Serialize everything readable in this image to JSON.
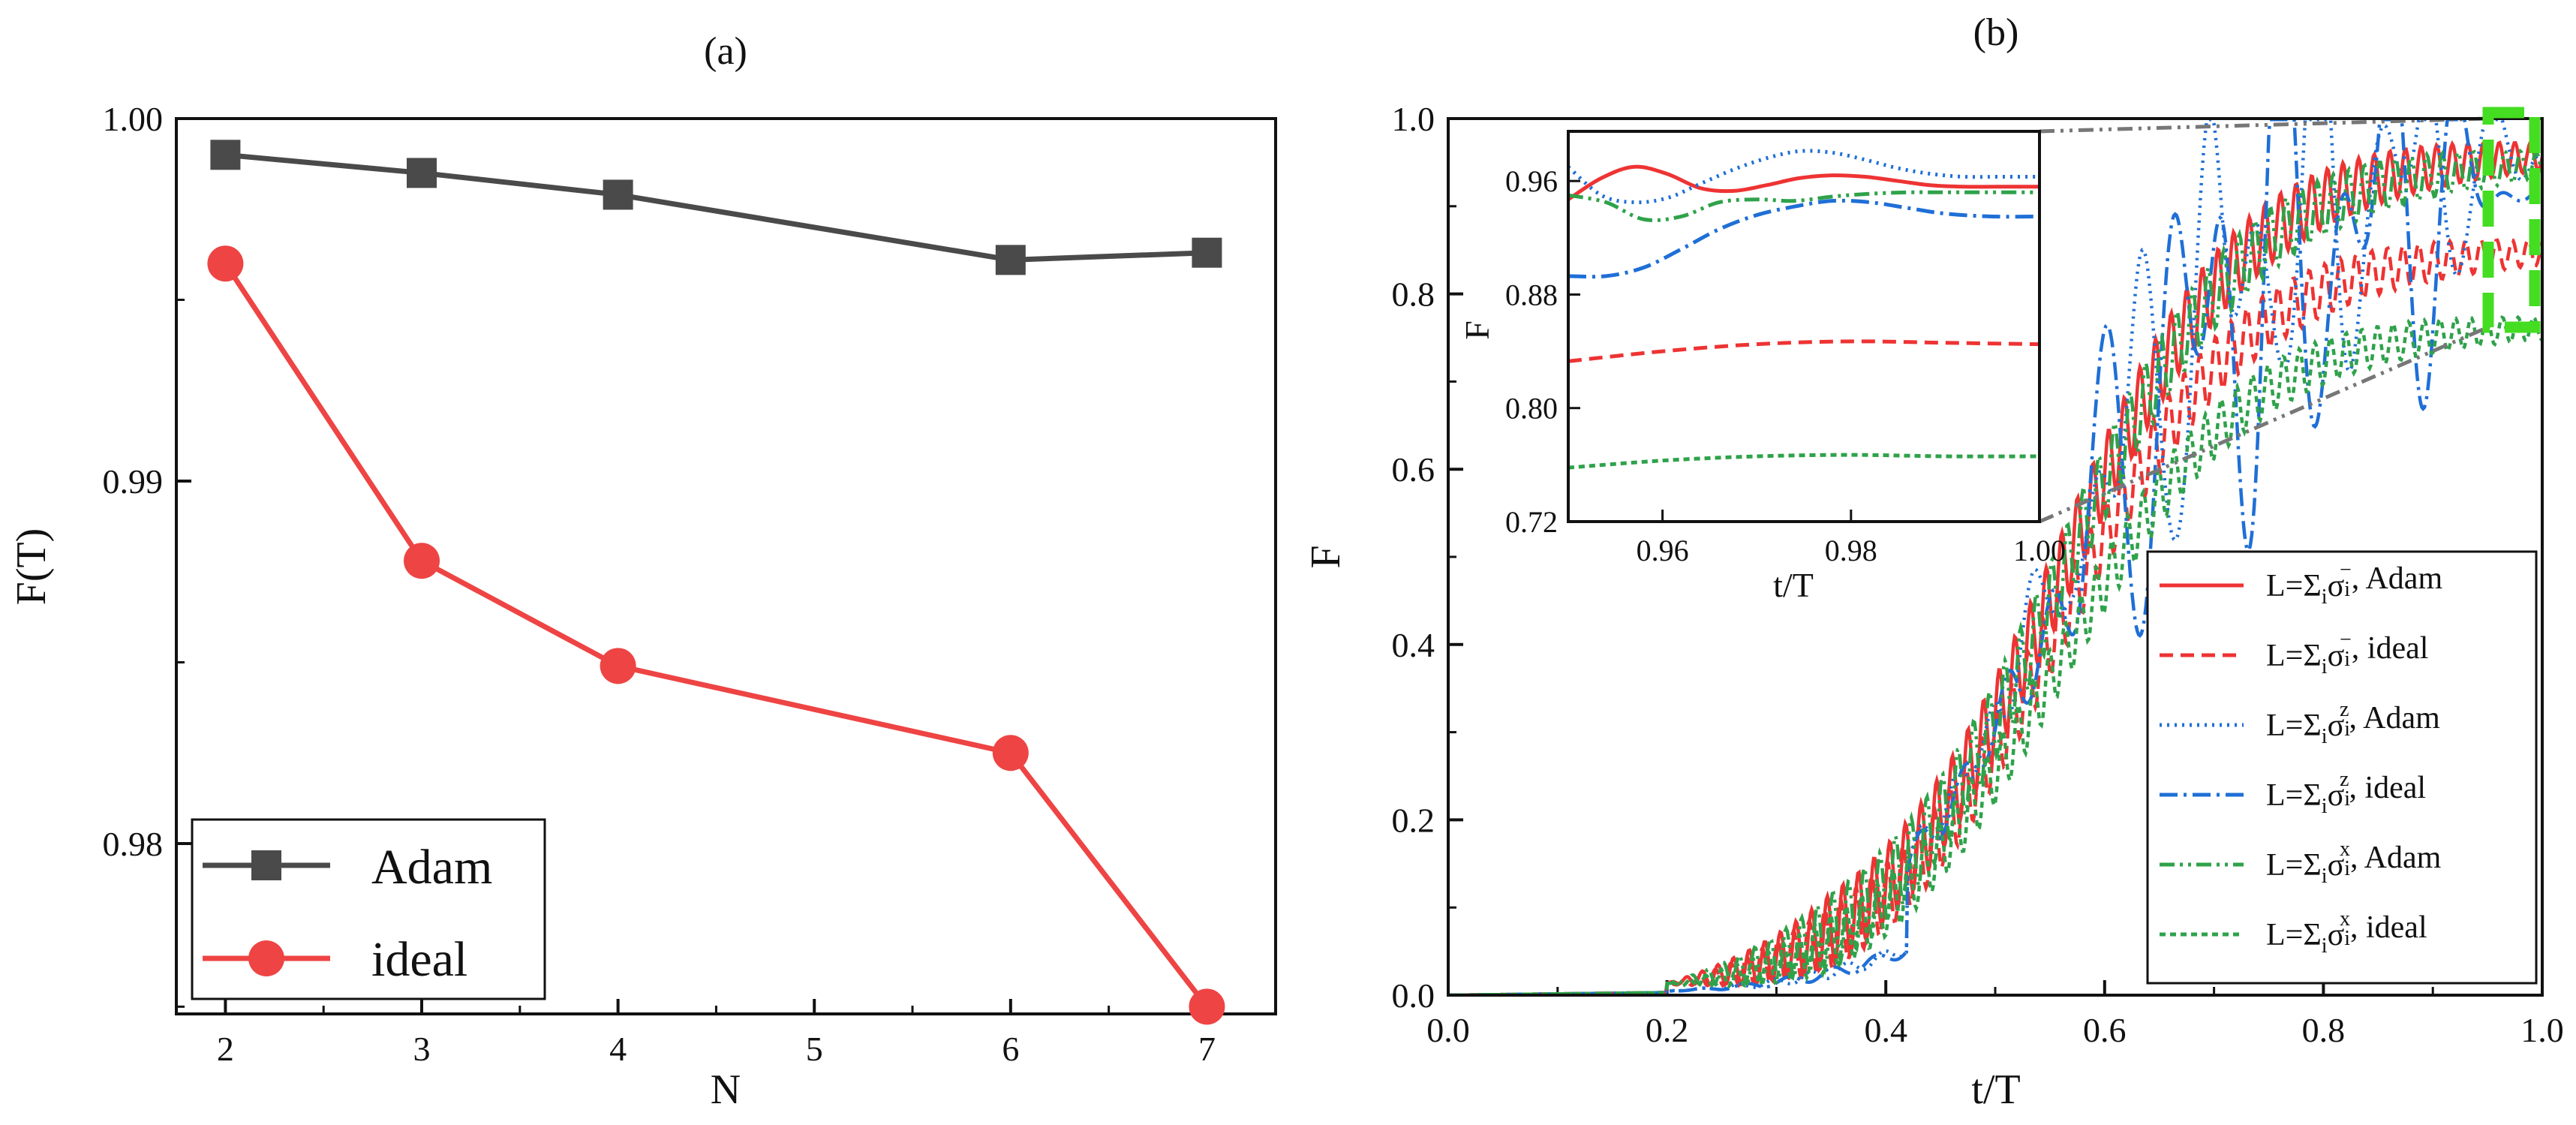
{
  "chart_data": [
    {
      "panel": "(a)",
      "type": "line",
      "title": "(a)",
      "xlabel": "N",
      "ylabel": "F(T)",
      "xlim": [
        1.75,
        7.35
      ],
      "ylim": [
        0.9753,
        1.0
      ],
      "x_ticks": [
        "2",
        "3",
        "4",
        "5",
        "6",
        "7"
      ],
      "y_ticks": [
        "0.98",
        "0.99",
        "1.00"
      ],
      "x": [
        2,
        3,
        4,
        6,
        7
      ],
      "series": [
        {
          "name": "Adam",
          "color": "#4a4a4a",
          "marker": "square",
          "values": [
            0.999,
            0.9985,
            0.9979,
            0.9961,
            0.9963
          ]
        },
        {
          "name": "ideal",
          "color": "#ee4444",
          "marker": "circle",
          "values": [
            0.996,
            0.9878,
            0.9849,
            0.9825,
            0.9755
          ]
        }
      ],
      "legend": [
        "Adam",
        "ideal"
      ],
      "legend_position": "bottom-left"
    },
    {
      "panel": "(b)",
      "type": "line",
      "title": "(b)",
      "xlabel": "t/T",
      "ylabel": "F",
      "xlim": [
        0.0,
        1.0
      ],
      "ylim": [
        0.0,
        1.0
      ],
      "x_ticks": [
        "0.0",
        "0.2",
        "0.4",
        "0.6",
        "0.8",
        "1.0"
      ],
      "y_ticks": [
        "0.0",
        "0.2",
        "0.4",
        "0.6",
        "0.8",
        "1.0"
      ],
      "legend_position": "bottom-right",
      "series": [
        {
          "name": "L=Σ",
          "sub": "i",
          "sigma": "σ",
          "sup": "−",
          "suffix": ", Adam",
          "color": "#ee3333",
          "dash": "",
          "final": 0.962,
          "osc": 0.045,
          "freq": 140,
          "noise": 0
        },
        {
          "name": "L=Σ",
          "sub": "i",
          "sigma": "σ",
          "sup": "−",
          "suffix": ", ideal",
          "color": "#ee3333",
          "dash": "18,10",
          "final": 0.852,
          "osc": 0.04,
          "freq": 140,
          "noise": 0
        },
        {
          "name": "L=Σ",
          "sub": "i",
          "sigma": "σ",
          "sup": "z",
          "suffix": ", Adam",
          "color": "#1f6fd6",
          "dash": "3,7",
          "final": 0.958,
          "osc": 0.02,
          "freq": 60,
          "noise": 0.28
        },
        {
          "name": "L=Σ",
          "sub": "i",
          "sigma": "σ",
          "sup": "z",
          "suffix": ", ideal",
          "color": "#1f6fd6",
          "dash": "24,8,4,8",
          "final": 0.925,
          "osc": 0.02,
          "freq": 50,
          "noise": 0.36
        },
        {
          "name": "L=Σ",
          "sub": "i",
          "sigma": "σ",
          "sup": "x",
          "suffix": ", Adam",
          "color": "#2fa24a",
          "dash": "20,7,4,7,4,7",
          "final": 0.952,
          "osc": 0.045,
          "freq": 140,
          "noise": 0
        },
        {
          "name": "L=Σ",
          "sub": "i",
          "sigma": "σ",
          "sup": "x",
          "suffix": ", ideal",
          "color": "#2fa24a",
          "dash": "8,6",
          "final": 0.765,
          "osc": 0.035,
          "freq": 140,
          "noise": 0
        }
      ],
      "inset": {
        "xlabel": "t/T",
        "ylabel": "F",
        "xlim": [
          0.95,
          1.0
        ],
        "ylim": [
          0.72,
          0.995
        ],
        "x_ticks": [
          "0.96",
          "0.98",
          "1.00"
        ],
        "y_ticks": [
          "0.72",
          "0.80",
          "0.88",
          "0.96"
        ],
        "curves": [
          {
            "series": 0,
            "x": [
              0.95,
              0.9535,
              0.957,
              0.9605,
              0.964,
              0.9675,
              0.971,
              0.9745,
              0.978,
              0.9815,
              0.985,
              0.9885,
              0.992,
              0.9955,
              1.0
            ],
            "y": [
              0.947,
              0.962,
              0.97,
              0.965,
              0.955,
              0.953,
              0.957,
              0.962,
              0.964,
              0.963,
              0.96,
              0.957,
              0.956,
              0.956,
              0.956
            ]
          },
          {
            "series": 1,
            "x": [
              0.95,
              0.96,
              0.97,
              0.98,
              0.99,
              1.0
            ],
            "y": [
              0.833,
              0.84,
              0.845,
              0.847,
              0.846,
              0.845
            ]
          },
          {
            "series": 2,
            "x": [
              0.95,
              0.9535,
              0.957,
              0.9605,
              0.964,
              0.9675,
              0.971,
              0.9745,
              0.978,
              0.9815,
              0.985,
              0.9885,
              0.992,
              0.9955,
              1.0
            ],
            "y": [
              0.97,
              0.95,
              0.945,
              0.948,
              0.958,
              0.968,
              0.976,
              0.981,
              0.98,
              0.975,
              0.969,
              0.965,
              0.963,
              0.963,
              0.963
            ]
          },
          {
            "series": 3,
            "x": [
              0.95,
              0.954,
              0.958,
              0.962,
              0.966,
              0.97,
              0.974,
              0.978,
              0.982,
              0.986,
              0.99,
              0.995,
              1.0
            ],
            "y": [
              0.893,
              0.893,
              0.899,
              0.912,
              0.926,
              0.936,
              0.942,
              0.946,
              0.945,
              0.941,
              0.937,
              0.935,
              0.935
            ]
          },
          {
            "series": 4,
            "x": [
              0.95,
              0.954,
              0.958,
              0.962,
              0.966,
              0.97,
              0.974,
              0.978,
              0.982,
              0.986,
              0.99,
              0.995,
              1.0
            ],
            "y": [
              0.95,
              0.945,
              0.933,
              0.935,
              0.945,
              0.947,
              0.946,
              0.949,
              0.951,
              0.952,
              0.952,
              0.952,
              0.952
            ]
          },
          {
            "series": 5,
            "x": [
              0.95,
              0.96,
              0.97,
              0.98,
              0.99,
              1.0
            ],
            "y": [
              0.758,
              0.763,
              0.766,
              0.767,
              0.766,
              0.766
            ]
          }
        ]
      }
    }
  ]
}
